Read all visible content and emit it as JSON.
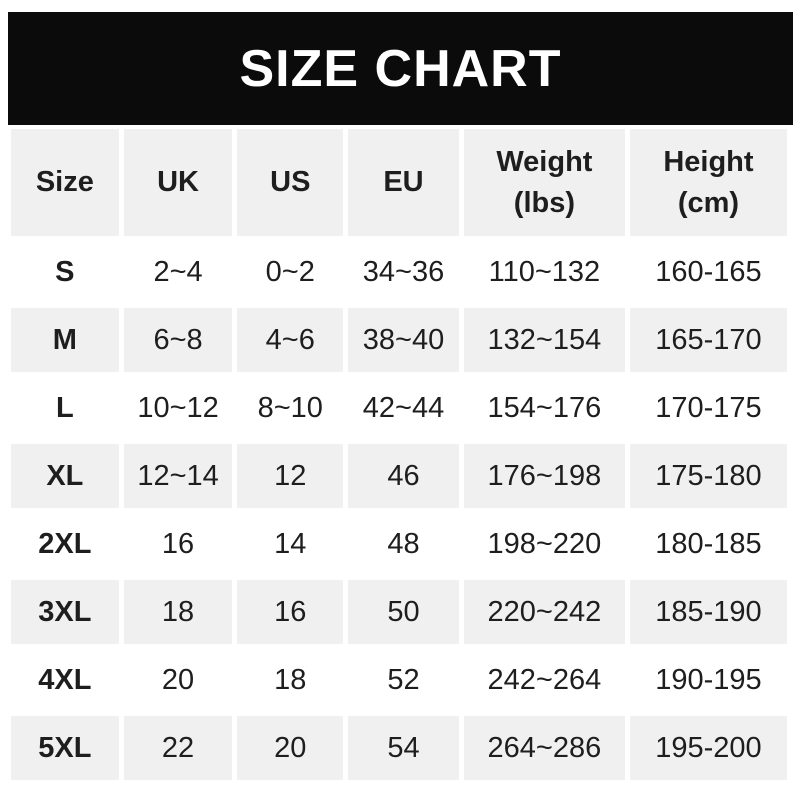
{
  "chart_data": {
    "type": "table",
    "title": "SIZE CHART",
    "columns": [
      "Size",
      "UK",
      "US",
      "EU",
      "Weight\n(lbs)",
      "Height\n(cm)"
    ],
    "rows": [
      [
        "S",
        "2~4",
        "0~2",
        "34~36",
        "110~132",
        "160-165"
      ],
      [
        "M",
        "6~8",
        "4~6",
        "38~40",
        "132~154",
        "165-170"
      ],
      [
        "L",
        "10~12",
        "8~10",
        "42~44",
        "154~176",
        "170-175"
      ],
      [
        "XL",
        "12~14",
        "12",
        "46",
        "176~198",
        "175-180"
      ],
      [
        "2XL",
        "16",
        "14",
        "48",
        "198~220",
        "180-185"
      ],
      [
        "3XL",
        "18",
        "16",
        "50",
        "220~242",
        "185-190"
      ],
      [
        "4XL",
        "20",
        "18",
        "52",
        "242~264",
        "190-195"
      ],
      [
        "5XL",
        "22",
        "20",
        "54",
        "264~286",
        "195-200"
      ]
    ],
    "colors": {
      "title_bar_bg": "#0b0b0b",
      "title_text": "#ffffff",
      "row_alt_bg": "#f0f0f1",
      "row_bg": "#ffffff",
      "cell_text": "#1e1e1e"
    },
    "layout_hints": {
      "alternating_rows": "header, M, XL, 3XL, 5XL shaded",
      "grid": "white gutters between cells"
    }
  }
}
